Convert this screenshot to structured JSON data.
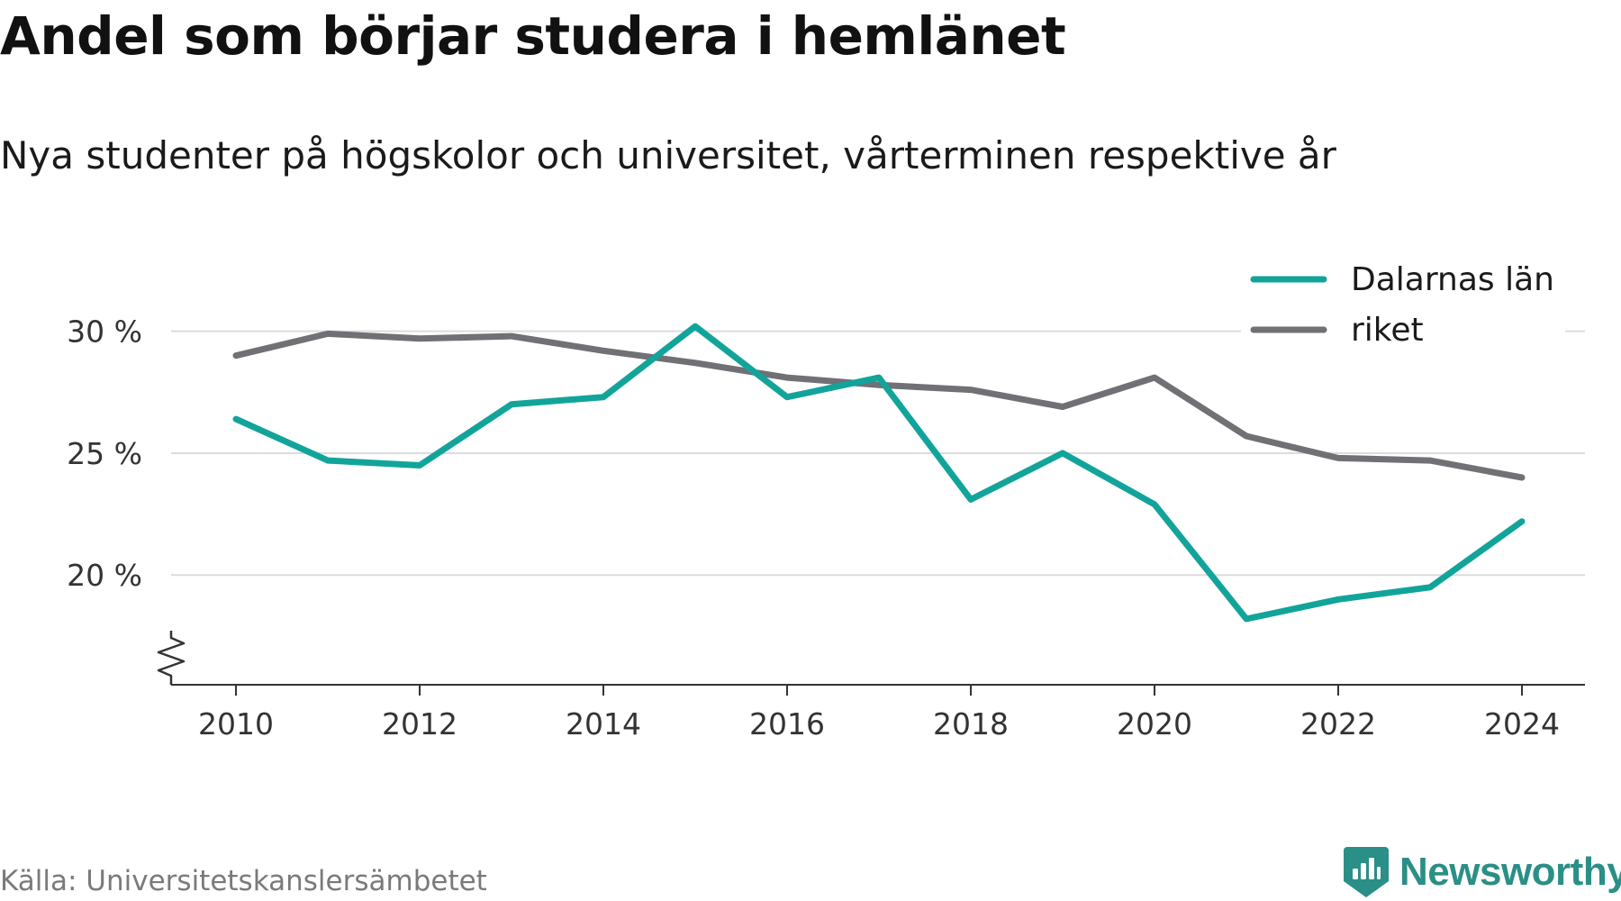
{
  "chart_data": {
    "type": "line",
    "title": "Andel som börjar studera i hemlänet",
    "subtitle": "Nya studenter på högskolor och universitet, vårterminen respektive år",
    "x": [
      2010,
      2011,
      2012,
      2013,
      2014,
      2015,
      2016,
      2017,
      2018,
      2019,
      2020,
      2021,
      2022,
      2023,
      2024
    ],
    "x_ticks": [
      "2010",
      "2012",
      "2014",
      "2016",
      "2018",
      "2020",
      "2022",
      "2024"
    ],
    "y_ticks": [
      "20 %",
      "25 %",
      "30 %"
    ],
    "y_tick_values": [
      20,
      25,
      30
    ],
    "ylim": [
      15.5,
      32.5
    ],
    "grid": true,
    "legend_position": "top-right",
    "series": [
      {
        "name": "Dalarnas län",
        "color": "#12a49a",
        "values": [
          26.4,
          24.7,
          24.5,
          27.0,
          27.3,
          30.2,
          27.3,
          28.1,
          23.1,
          25.0,
          22.9,
          18.2,
          19.0,
          19.5,
          22.2
        ]
      },
      {
        "name": "riket",
        "color": "#707075",
        "values": [
          29.0,
          29.9,
          29.7,
          29.8,
          29.2,
          28.7,
          28.1,
          27.8,
          27.6,
          26.9,
          28.1,
          25.7,
          24.8,
          24.7,
          24.0
        ]
      }
    ]
  },
  "footer": {
    "source": "Källa: Universitetskanslersämbetet",
    "brand": "Newsworthy"
  },
  "colors": {
    "accent": "#12a49a",
    "national": "#707075",
    "grid": "#dcdcdc",
    "axis": "#333333",
    "brand": "#2a8f86"
  }
}
